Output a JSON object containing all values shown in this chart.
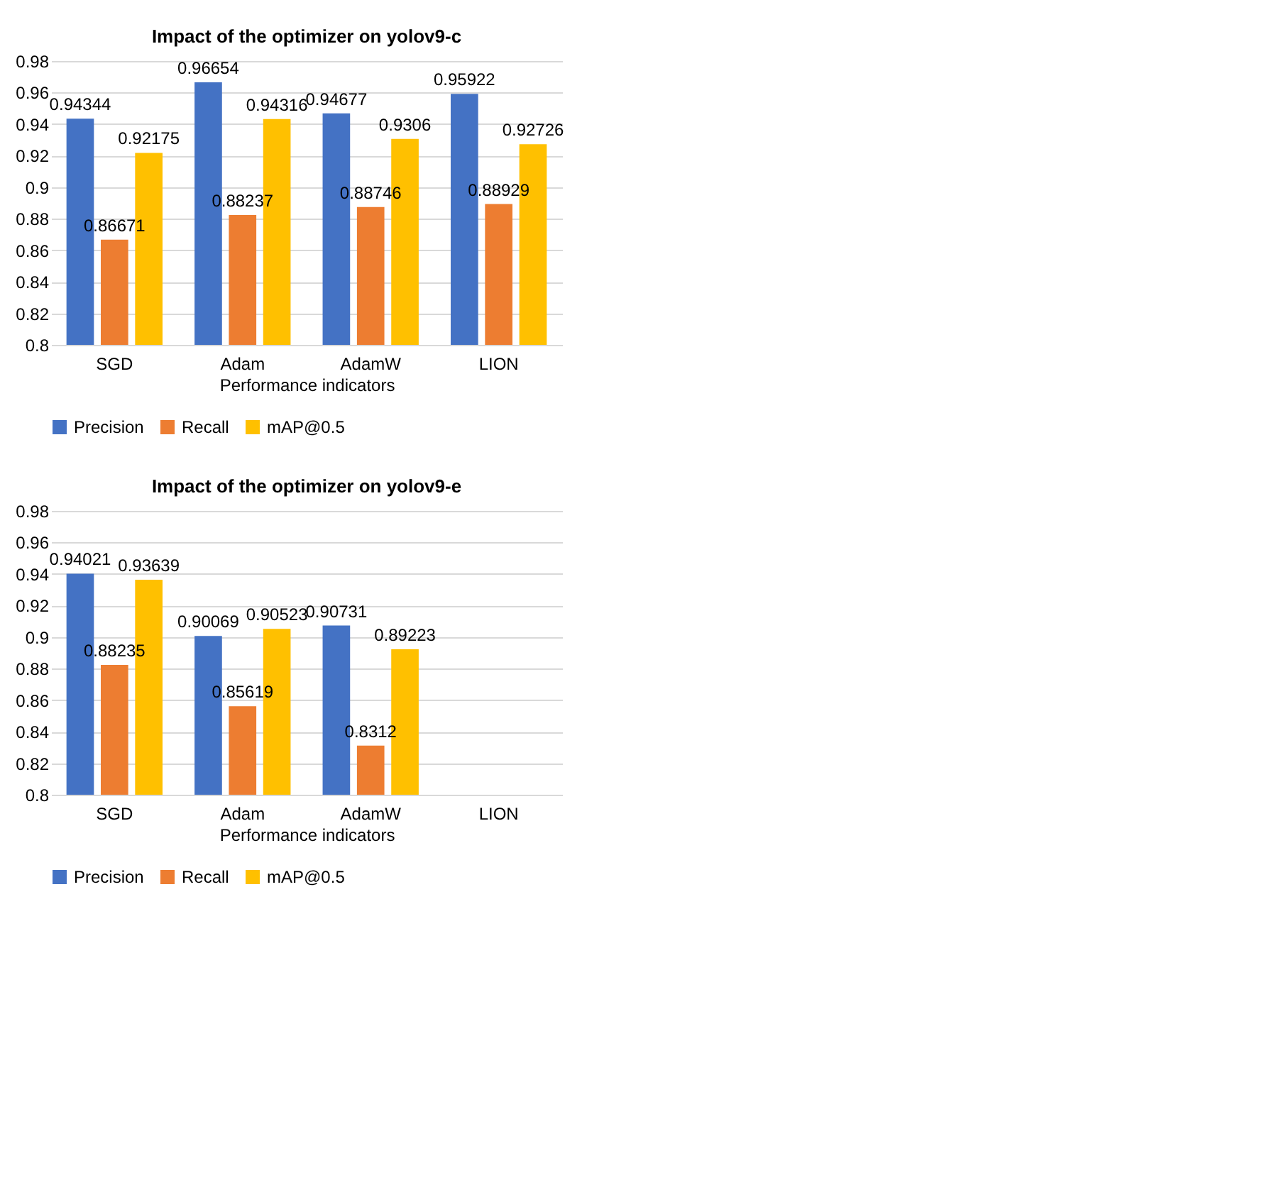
{
  "chart_data": [
    {
      "type": "bar",
      "title": "Impact of the optimizer on yolov9-c",
      "xlabel": "Performance indicators",
      "categories": [
        "SGD",
        "Adam",
        "AdamW",
        "LION"
      ],
      "series": [
        {
          "name": "Precision",
          "color": "#4472c4",
          "values": [
            0.94344,
            0.96654,
            0.94677,
            0.95922
          ]
        },
        {
          "name": "Recall",
          "color": "#ed7d31",
          "values": [
            0.86671,
            0.88237,
            0.88746,
            0.88929
          ]
        },
        {
          "name": "mAP@0.5",
          "color": "#ffc000",
          "values": [
            0.92175,
            0.94316,
            0.9306,
            0.92726
          ]
        }
      ],
      "ylim": [
        0.8,
        0.98
      ],
      "yticks": [
        0.8,
        0.82,
        0.84,
        0.86,
        0.88,
        0.9,
        0.92,
        0.94,
        0.96,
        0.98
      ],
      "grid": "y",
      "legend": "bottom",
      "data_labels": true
    },
    {
      "type": "bar",
      "title": "Impact of the optimizer on yolov9-e",
      "xlabel": "Performance indicators",
      "categories": [
        "SGD",
        "Adam",
        "AdamW",
        "LION"
      ],
      "series": [
        {
          "name": "Precision",
          "color": "#4472c4",
          "values": [
            0.94021,
            0.90069,
            0.90731,
            null
          ]
        },
        {
          "name": "Recall",
          "color": "#ed7d31",
          "values": [
            0.88235,
            0.85619,
            0.8312,
            null
          ]
        },
        {
          "name": "mAP@0.5",
          "color": "#ffc000",
          "values": [
            0.93639,
            0.90523,
            0.89223,
            null
          ]
        }
      ],
      "ylim": [
        0.8,
        0.98
      ],
      "yticks": [
        0.8,
        0.82,
        0.84,
        0.86,
        0.88,
        0.9,
        0.92,
        0.94,
        0.96,
        0.98
      ],
      "grid": "y",
      "legend": "bottom",
      "data_labels": true
    }
  ]
}
